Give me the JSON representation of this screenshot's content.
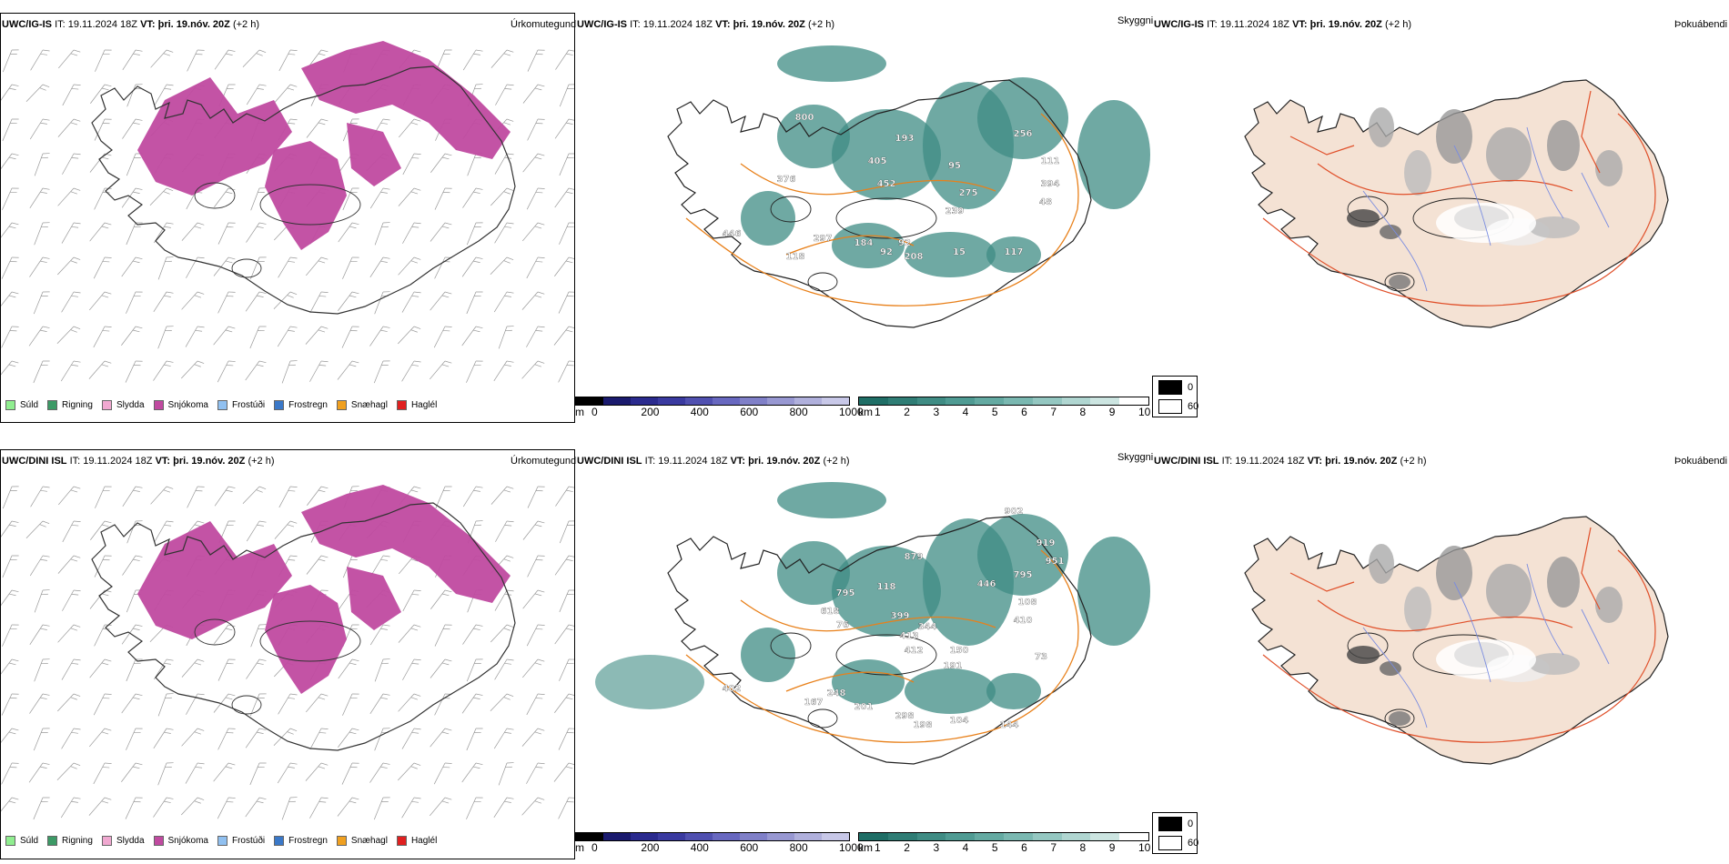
{
  "rows": [
    {
      "precip": {
        "model": "UWC/IG-IS",
        "it_label": "IT:",
        "it": "19.11.2024 18Z",
        "vt_label": "VT:",
        "vt": "þri. 19.nóv. 20Z",
        "lead": "(+2 h)",
        "title": "Úrkomutegund"
      },
      "cloud": {
        "model": "UWC/IG-IS",
        "it_label": "IT:",
        "it": "19.11.2024 18Z",
        "vt_label": "VT:",
        "vt": "þri. 19.nóv. 20Z",
        "lead": "(+2 h)",
        "title": "Skyggni",
        "labels": [
          "800",
          "193",
          "405",
          "452",
          "376",
          "446",
          "297",
          "118",
          "184",
          "92",
          "208",
          "15",
          "117",
          "275",
          "239",
          "95",
          "256",
          "111",
          "394",
          "48",
          "92"
        ]
      },
      "fog": {
        "model": "UWC/IG-IS",
        "it_label": "IT:",
        "it": "19.11.2024 18Z",
        "vt_label": "VT:",
        "vt": "þri. 19.nóv. 20Z",
        "lead": "(+2 h)",
        "title": "Þokuábendi"
      }
    },
    {
      "precip": {
        "model": "UWC/DINI ISL",
        "it_label": "IT:",
        "it": "19.11.2024 18Z",
        "vt_label": "VT:",
        "vt": "þri. 19.nóv. 20Z",
        "lead": "(+2 h)",
        "title": "Úrkomutegund"
      },
      "cloud": {
        "model": "UWC/DINI ISL",
        "it_label": "IT:",
        "it": "19.11.2024 18Z",
        "vt_label": "VT:",
        "vt": "þri. 19.nóv. 20Z",
        "lead": "(+2 h)",
        "title": "Skyggni",
        "labels": [
          "902",
          "879",
          "795",
          "618",
          "118",
          "76",
          "399",
          "344",
          "413",
          "412",
          "150",
          "191",
          "446",
          "795",
          "108",
          "410",
          "919",
          "951",
          "402",
          "167",
          "248",
          "201",
          "298",
          "198",
          "104",
          "144",
          "73"
        ]
      },
      "fog": {
        "model": "UWC/DINI ISL",
        "it_label": "IT:",
        "it": "19.11.2024 18Z",
        "vt_label": "VT:",
        "vt": "þri. 19.nóv. 20Z",
        "lead": "(+2 h)",
        "title": "Þokuábendi"
      }
    }
  ],
  "precip_legend": [
    {
      "label": "Súld",
      "color": "#90ee90"
    },
    {
      "label": "Rigning",
      "color": "#3c9a66"
    },
    {
      "label": "Slydda",
      "color": "#f0a8d0"
    },
    {
      "label": "Snjókoma",
      "color": "#c04aa0"
    },
    {
      "label": "Frostúði",
      "color": "#90c0f0"
    },
    {
      "label": "Frostregn",
      "color": "#3a78c8"
    },
    {
      "label": "Snæhagl",
      "color": "#f0a020"
    },
    {
      "label": "Haglél",
      "color": "#e02020"
    }
  ],
  "cloudbase_scale": {
    "unit": "m",
    "ticks": [
      "0",
      "200",
      "400",
      "600",
      "800",
      "1000"
    ],
    "colors": [
      "#000000",
      "#1a1a6e",
      "#2a2a8e",
      "#3a3aa0",
      "#5050b0",
      "#6868c0",
      "#8080c8",
      "#9898d2",
      "#b0b0dc",
      "#c8c8e8"
    ]
  },
  "visibility_scale": {
    "unit": "km",
    "ticks": [
      "1",
      "2",
      "3",
      "4",
      "5",
      "6",
      "7",
      "8",
      "9",
      "10"
    ],
    "colors": [
      "#1f6e66",
      "#2f7d75",
      "#3f8c84",
      "#4f9b93",
      "#64aaa2",
      "#7ab8b1",
      "#94c7c1",
      "#b0d6d1",
      "#cce5e1",
      "#ffffff"
    ]
  },
  "fog_scale": {
    "items": [
      {
        "label": "0",
        "color": "#000000"
      },
      {
        "label": "60",
        "color": "#ffffff"
      }
    ]
  }
}
